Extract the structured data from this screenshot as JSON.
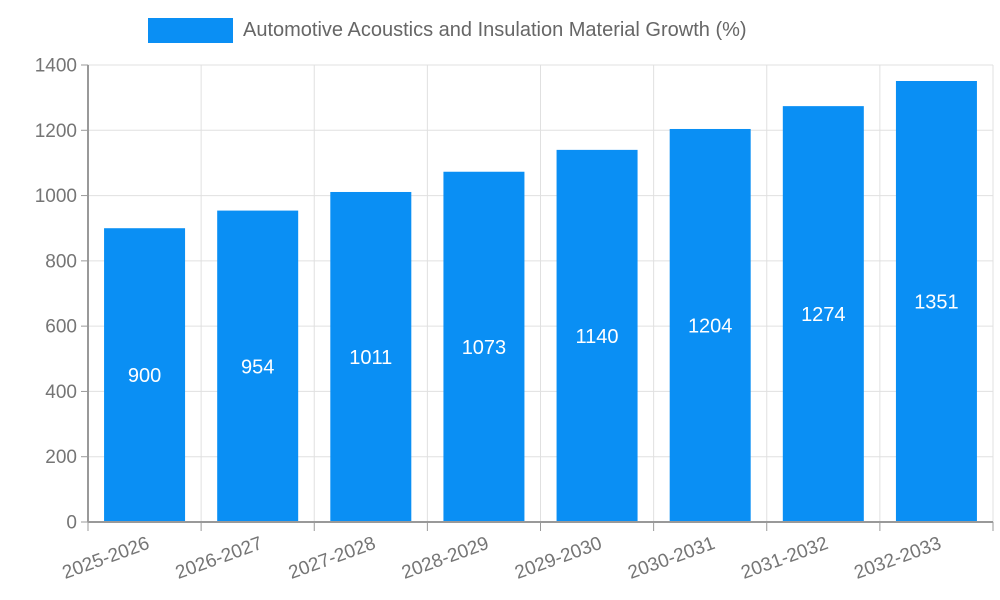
{
  "chart_data": {
    "type": "bar",
    "title": "Automotive Acoustics and Insulation Material Growth (%)",
    "categories": [
      "2025-2026",
      "2026-2027",
      "2027-2028",
      "2028-2029",
      "2029-2030",
      "2030-2031",
      "2031-2032",
      "2032-2033"
    ],
    "values": [
      900,
      954,
      1011,
      1073,
      1140,
      1204,
      1274,
      1351
    ],
    "xlabel": "",
    "ylabel": "",
    "ylim": [
      0,
      1400
    ],
    "ytick_step": 200,
    "grid": true,
    "legend_position": "top-center",
    "value_labels": "inside-center",
    "x_label_rotation_deg": -20,
    "colors": {
      "bar": "#0a8ff4",
      "grid_line": "#e0e0e0",
      "axis_line": "#999999",
      "tick_label": "#757575",
      "value_label": "#ffffff",
      "legend_text": "#666666",
      "background": "#ffffff"
    }
  }
}
